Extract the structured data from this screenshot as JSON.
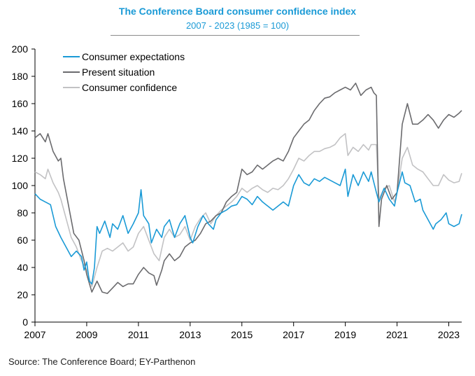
{
  "chart_data": {
    "type": "line",
    "title": "The Conference Board consumer confidence index",
    "subtitle": "2007 - 2023 (1985 = 100)",
    "source": "Source: The Conference Board; EY-Parthenon",
    "ylim": [
      0,
      200
    ],
    "yticks": [
      "0",
      "20",
      "40",
      "60",
      "80",
      "100",
      "120",
      "140",
      "160",
      "180",
      "200"
    ],
    "xlim": [
      2007.0,
      2023.5
    ],
    "xticks": [
      "2007",
      "2009",
      "2011",
      "2013",
      "2015",
      "2017",
      "2019",
      "2021",
      "2023"
    ],
    "legend_position": "top-left",
    "grid": false,
    "series": [
      {
        "name": "Consumer expectations",
        "color": "#1a9ad6",
        "points": [
          [
            2007.0,
            94
          ],
          [
            2007.2,
            90
          ],
          [
            2007.4,
            88
          ],
          [
            2007.6,
            86
          ],
          [
            2007.8,
            70
          ],
          [
            2008.0,
            62
          ],
          [
            2008.2,
            55
          ],
          [
            2008.4,
            48
          ],
          [
            2008.6,
            52
          ],
          [
            2008.8,
            48
          ],
          [
            2008.9,
            38
          ],
          [
            2009.0,
            44
          ],
          [
            2009.1,
            30
          ],
          [
            2009.2,
            28
          ],
          [
            2009.3,
            40
          ],
          [
            2009.4,
            70
          ],
          [
            2009.5,
            65
          ],
          [
            2009.7,
            74
          ],
          [
            2009.9,
            62
          ],
          [
            2010.0,
            72
          ],
          [
            2010.2,
            68
          ],
          [
            2010.4,
            78
          ],
          [
            2010.6,
            65
          ],
          [
            2010.8,
            72
          ],
          [
            2011.0,
            80
          ],
          [
            2011.1,
            97
          ],
          [
            2011.2,
            78
          ],
          [
            2011.4,
            72
          ],
          [
            2011.5,
            58
          ],
          [
            2011.7,
            68
          ],
          [
            2011.9,
            62
          ],
          [
            2012.0,
            70
          ],
          [
            2012.2,
            75
          ],
          [
            2012.4,
            62
          ],
          [
            2012.6,
            72
          ],
          [
            2012.8,
            78
          ],
          [
            2013.0,
            62
          ],
          [
            2013.1,
            58
          ],
          [
            2013.3,
            70
          ],
          [
            2013.5,
            78
          ],
          [
            2013.7,
            72
          ],
          [
            2013.9,
            68
          ],
          [
            2014.0,
            75
          ],
          [
            2014.2,
            80
          ],
          [
            2014.4,
            82
          ],
          [
            2014.6,
            85
          ],
          [
            2014.8,
            86
          ],
          [
            2015.0,
            92
          ],
          [
            2015.2,
            90
          ],
          [
            2015.4,
            86
          ],
          [
            2015.6,
            92
          ],
          [
            2015.8,
            88
          ],
          [
            2016.0,
            85
          ],
          [
            2016.2,
            82
          ],
          [
            2016.4,
            85
          ],
          [
            2016.6,
            88
          ],
          [
            2016.8,
            85
          ],
          [
            2017.0,
            100
          ],
          [
            2017.2,
            108
          ],
          [
            2017.4,
            102
          ],
          [
            2017.6,
            100
          ],
          [
            2017.8,
            105
          ],
          [
            2018.0,
            103
          ],
          [
            2018.2,
            106
          ],
          [
            2018.4,
            104
          ],
          [
            2018.6,
            102
          ],
          [
            2018.8,
            100
          ],
          [
            2019.0,
            112
          ],
          [
            2019.1,
            92
          ],
          [
            2019.3,
            108
          ],
          [
            2019.5,
            100
          ],
          [
            2019.7,
            110
          ],
          [
            2019.9,
            103
          ],
          [
            2020.0,
            110
          ],
          [
            2020.2,
            95
          ],
          [
            2020.3,
            88
          ],
          [
            2020.5,
            98
          ],
          [
            2020.7,
            90
          ],
          [
            2020.9,
            85
          ],
          [
            2021.0,
            95
          ],
          [
            2021.2,
            110
          ],
          [
            2021.3,
            102
          ],
          [
            2021.5,
            100
          ],
          [
            2021.7,
            88
          ],
          [
            2021.9,
            90
          ],
          [
            2022.0,
            82
          ],
          [
            2022.2,
            75
          ],
          [
            2022.4,
            68
          ],
          [
            2022.5,
            72
          ],
          [
            2022.7,
            75
          ],
          [
            2022.9,
            80
          ],
          [
            2023.0,
            72
          ],
          [
            2023.2,
            70
          ],
          [
            2023.4,
            72
          ],
          [
            2023.5,
            79
          ]
        ]
      },
      {
        "name": "Present situation",
        "color": "#6b6b6e",
        "points": [
          [
            2007.0,
            135
          ],
          [
            2007.2,
            138
          ],
          [
            2007.4,
            132
          ],
          [
            2007.5,
            138
          ],
          [
            2007.7,
            125
          ],
          [
            2007.9,
            118
          ],
          [
            2008.0,
            120
          ],
          [
            2008.1,
            105
          ],
          [
            2008.3,
            85
          ],
          [
            2008.5,
            65
          ],
          [
            2008.7,
            60
          ],
          [
            2008.9,
            45
          ],
          [
            2009.0,
            35
          ],
          [
            2009.2,
            22
          ],
          [
            2009.4,
            30
          ],
          [
            2009.6,
            22
          ],
          [
            2009.8,
            21
          ],
          [
            2010.0,
            25
          ],
          [
            2010.2,
            29
          ],
          [
            2010.4,
            26
          ],
          [
            2010.6,
            28
          ],
          [
            2010.8,
            28
          ],
          [
            2011.0,
            35
          ],
          [
            2011.2,
            40
          ],
          [
            2011.4,
            36
          ],
          [
            2011.6,
            34
          ],
          [
            2011.7,
            27
          ],
          [
            2011.9,
            38
          ],
          [
            2012.0,
            45
          ],
          [
            2012.2,
            50
          ],
          [
            2012.4,
            45
          ],
          [
            2012.6,
            48
          ],
          [
            2012.8,
            55
          ],
          [
            2013.0,
            58
          ],
          [
            2013.2,
            60
          ],
          [
            2013.4,
            65
          ],
          [
            2013.6,
            72
          ],
          [
            2013.8,
            74
          ],
          [
            2014.0,
            78
          ],
          [
            2014.2,
            80
          ],
          [
            2014.4,
            88
          ],
          [
            2014.6,
            92
          ],
          [
            2014.8,
            95
          ],
          [
            2015.0,
            112
          ],
          [
            2015.2,
            108
          ],
          [
            2015.4,
            110
          ],
          [
            2015.6,
            115
          ],
          [
            2015.8,
            112
          ],
          [
            2016.0,
            115
          ],
          [
            2016.2,
            118
          ],
          [
            2016.4,
            120
          ],
          [
            2016.6,
            118
          ],
          [
            2016.8,
            125
          ],
          [
            2017.0,
            135
          ],
          [
            2017.2,
            140
          ],
          [
            2017.4,
            145
          ],
          [
            2017.6,
            148
          ],
          [
            2017.8,
            155
          ],
          [
            2018.0,
            160
          ],
          [
            2018.2,
            164
          ],
          [
            2018.4,
            165
          ],
          [
            2018.6,
            168
          ],
          [
            2018.8,
            170
          ],
          [
            2019.0,
            172
          ],
          [
            2019.2,
            170
          ],
          [
            2019.4,
            175
          ],
          [
            2019.6,
            166
          ],
          [
            2019.8,
            170
          ],
          [
            2020.0,
            172
          ],
          [
            2020.1,
            168
          ],
          [
            2020.2,
            166
          ],
          [
            2020.3,
            70
          ],
          [
            2020.4,
            90
          ],
          [
            2020.6,
            100
          ],
          [
            2020.8,
            90
          ],
          [
            2021.0,
            95
          ],
          [
            2021.2,
            145
          ],
          [
            2021.4,
            160
          ],
          [
            2021.6,
            145
          ],
          [
            2021.8,
            145
          ],
          [
            2022.0,
            148
          ],
          [
            2022.2,
            152
          ],
          [
            2022.4,
            148
          ],
          [
            2022.6,
            142
          ],
          [
            2022.8,
            148
          ],
          [
            2023.0,
            152
          ],
          [
            2023.2,
            150
          ],
          [
            2023.4,
            153
          ],
          [
            2023.5,
            155
          ]
        ]
      },
      {
        "name": "Consumer confidence",
        "color": "#c2c2c4",
        "points": [
          [
            2007.0,
            110
          ],
          [
            2007.2,
            108
          ],
          [
            2007.4,
            105
          ],
          [
            2007.5,
            112
          ],
          [
            2007.7,
            102
          ],
          [
            2007.9,
            95
          ],
          [
            2008.0,
            90
          ],
          [
            2008.2,
            76
          ],
          [
            2008.4,
            62
          ],
          [
            2008.6,
            55
          ],
          [
            2008.8,
            45
          ],
          [
            2009.0,
            38
          ],
          [
            2009.2,
            26
          ],
          [
            2009.4,
            40
          ],
          [
            2009.6,
            52
          ],
          [
            2009.8,
            54
          ],
          [
            2010.0,
            52
          ],
          [
            2010.2,
            55
          ],
          [
            2010.4,
            58
          ],
          [
            2010.6,
            52
          ],
          [
            2010.8,
            55
          ],
          [
            2011.0,
            65
          ],
          [
            2011.2,
            70
          ],
          [
            2011.4,
            60
          ],
          [
            2011.6,
            50
          ],
          [
            2011.8,
            45
          ],
          [
            2012.0,
            62
          ],
          [
            2012.2,
            68
          ],
          [
            2012.4,
            62
          ],
          [
            2012.6,
            64
          ],
          [
            2012.8,
            70
          ],
          [
            2013.0,
            60
          ],
          [
            2013.2,
            70
          ],
          [
            2013.4,
            76
          ],
          [
            2013.6,
            80
          ],
          [
            2013.8,
            72
          ],
          [
            2014.0,
            78
          ],
          [
            2014.2,
            82
          ],
          [
            2014.4,
            85
          ],
          [
            2014.6,
            88
          ],
          [
            2014.8,
            92
          ],
          [
            2015.0,
            98
          ],
          [
            2015.2,
            95
          ],
          [
            2015.4,
            98
          ],
          [
            2015.6,
            100
          ],
          [
            2015.8,
            97
          ],
          [
            2016.0,
            95
          ],
          [
            2016.2,
            98
          ],
          [
            2016.4,
            97
          ],
          [
            2016.6,
            100
          ],
          [
            2016.8,
            105
          ],
          [
            2017.0,
            112
          ],
          [
            2017.2,
            120
          ],
          [
            2017.4,
            118
          ],
          [
            2017.6,
            122
          ],
          [
            2017.8,
            125
          ],
          [
            2018.0,
            125
          ],
          [
            2018.2,
            127
          ],
          [
            2018.4,
            128
          ],
          [
            2018.6,
            130
          ],
          [
            2018.8,
            135
          ],
          [
            2019.0,
            138
          ],
          [
            2019.1,
            122
          ],
          [
            2019.3,
            128
          ],
          [
            2019.5,
            125
          ],
          [
            2019.7,
            130
          ],
          [
            2019.9,
            126
          ],
          [
            2020.0,
            130
          ],
          [
            2020.2,
            130
          ],
          [
            2020.3,
            90
          ],
          [
            2020.5,
            98
          ],
          [
            2020.7,
            100
          ],
          [
            2020.9,
            88
          ],
          [
            2021.0,
            95
          ],
          [
            2021.2,
            120
          ],
          [
            2021.4,
            128
          ],
          [
            2021.6,
            115
          ],
          [
            2021.8,
            112
          ],
          [
            2022.0,
            110
          ],
          [
            2022.2,
            105
          ],
          [
            2022.4,
            100
          ],
          [
            2022.6,
            100
          ],
          [
            2022.8,
            108
          ],
          [
            2023.0,
            104
          ],
          [
            2023.2,
            102
          ],
          [
            2023.4,
            103
          ],
          [
            2023.5,
            109
          ]
        ]
      }
    ]
  }
}
